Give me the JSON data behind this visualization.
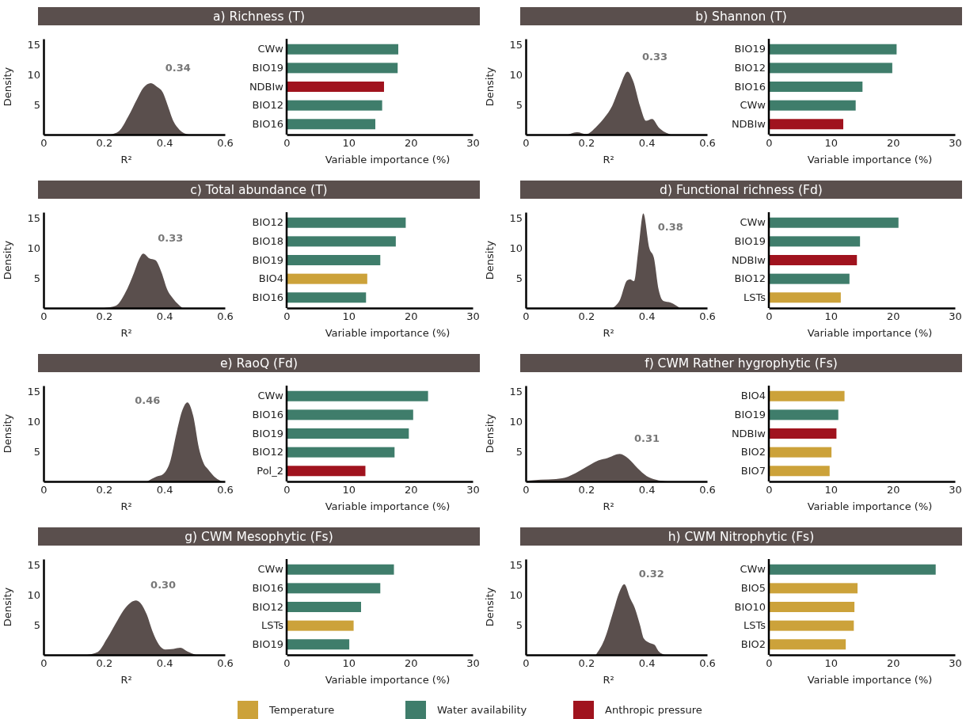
{
  "chart_data": [
    {
      "type": "area",
      "title": "a) Richness (T)",
      "xlabel": "R²",
      "ylabel": "Density",
      "color": "#5a4f4d",
      "xlim": [
        0,
        0.6
      ],
      "xticks": [
        0,
        0.2,
        0.4,
        0.6
      ],
      "ylim": [
        0,
        16
      ],
      "yticks": [
        5,
        10,
        15
      ],
      "x": [
        0.22,
        0.25,
        0.28,
        0.31,
        0.33,
        0.355,
        0.375,
        0.395,
        0.41,
        0.43,
        0.45,
        0.48
      ],
      "values": [
        0,
        0.6,
        3,
        6,
        7.8,
        8.6,
        8,
        7,
        5,
        2.2,
        0.8,
        0
      ],
      "annotations": [
        "0.34"
      ]
    },
    {
      "type": "bar",
      "orientation": "horizontal",
      "stacked": true,
      "xlabel": "Variable importance (%)",
      "xlim": [
        0,
        30
      ],
      "xticks": [
        0,
        10,
        20,
        30
      ],
      "categories": [
        "CWw",
        "BIO19",
        "NDBIw",
        "BIO12",
        "BIO16"
      ],
      "series": [
        {
          "color": "#3f7d6b",
          "values": [
            18.0,
            17.9,
            null,
            15.4,
            14.3
          ]
        },
        {
          "color": "#a0131e",
          "values": [
            null,
            null,
            15.7,
            null,
            null
          ]
        }
      ]
    },
    {
      "type": "area",
      "title": "b) Shannon (T)",
      "xlabel": "R²",
      "ylabel": "Density",
      "color": "#5a4f4d",
      "xlim": [
        0,
        0.6
      ],
      "xticks": [
        0,
        0.2,
        0.4,
        0.6
      ],
      "ylim": [
        0,
        16
      ],
      "yticks": [
        5,
        10,
        15
      ],
      "x": [
        0.14,
        0.17,
        0.2,
        0.235,
        0.26,
        0.286,
        0.31,
        0.337,
        0.355,
        0.378,
        0.398,
        0.418,
        0.44,
        0.48
      ],
      "values": [
        0,
        0.4,
        0.1,
        1.4,
        2.8,
        4.8,
        7.8,
        10.5,
        9,
        4.8,
        2.3,
        2.6,
        1.2,
        0
      ],
      "annotations": [
        "0.33"
      ]
    },
    {
      "type": "bar",
      "orientation": "horizontal",
      "stacked": true,
      "xlabel": "Variable importance (%)",
      "xlim": [
        0,
        30
      ],
      "xticks": [
        0,
        10,
        20,
        30
      ],
      "categories": [
        "BIO19",
        "BIO12",
        "BIO16",
        "CWw",
        "NDBIw"
      ],
      "series": [
        {
          "color": "#3f7d6b",
          "values": [
            20.6,
            19.9,
            15.1,
            14.0,
            null
          ]
        },
        {
          "color": "#a0131e",
          "values": [
            null,
            null,
            null,
            null,
            12.0
          ]
        }
      ]
    },
    {
      "type": "area",
      "title": "c) Total abundance (T)",
      "xlabel": "R²",
      "ylabel": "Density",
      "color": "#5a4f4d",
      "xlim": [
        0,
        0.6
      ],
      "xticks": [
        0,
        0.2,
        0.4,
        0.6
      ],
      "ylim": [
        0,
        16
      ],
      "yticks": [
        5,
        10,
        15
      ],
      "x": [
        0.2,
        0.24,
        0.27,
        0.3,
        0.315,
        0.33,
        0.35,
        0.37,
        0.39,
        0.41,
        0.43,
        0.46
      ],
      "values": [
        0,
        0.4,
        2.5,
        6,
        8,
        9.1,
        8.3,
        8,
        6,
        3,
        1.5,
        0
      ],
      "annotations": [
        "0.33"
      ]
    },
    {
      "type": "bar",
      "orientation": "horizontal",
      "stacked": true,
      "xlabel": "Variable importance (%)",
      "xlim": [
        0,
        30
      ],
      "xticks": [
        0,
        10,
        20,
        30
      ],
      "categories": [
        "BIO12",
        "BIO18",
        "BIO19",
        "BIO4",
        "BIO16"
      ],
      "series": [
        {
          "color": "#cca23a",
          "values": [
            null,
            null,
            null,
            13.0,
            null
          ]
        },
        {
          "color": "#3f7d6b",
          "values": [
            19.2,
            17.6,
            15.1,
            null,
            12.8
          ]
        }
      ]
    },
    {
      "type": "area",
      "title": "d) Functional richness (Fd)",
      "xlabel": "R²",
      "ylabel": "Density",
      "color": "#5a4f4d",
      "xlim": [
        0,
        0.6
      ],
      "xticks": [
        0,
        0.2,
        0.4,
        0.6
      ],
      "ylim": [
        0,
        16
      ],
      "yticks": [
        5,
        10,
        15
      ],
      "x": [
        0.287,
        0.312,
        0.335,
        0.345,
        0.358,
        0.373,
        0.389,
        0.409,
        0.424,
        0.44,
        0.455,
        0.48,
        0.51
      ],
      "values": [
        0,
        1.4,
        4.6,
        4.8,
        4.5,
        9.9,
        15.8,
        10,
        8.4,
        3,
        1.2,
        0.9,
        0
      ],
      "annotations": [
        "0.38"
      ]
    },
    {
      "type": "bar",
      "orientation": "horizontal",
      "stacked": true,
      "xlabel": "Variable importance (%)",
      "xlim": [
        0,
        30
      ],
      "xticks": [
        0,
        10,
        20,
        30
      ],
      "categories": [
        "CWw",
        "BIO19",
        "NDBIw",
        "BIO12",
        "LSTs"
      ],
      "series": [
        {
          "color": "#cca23a",
          "values": [
            null,
            null,
            null,
            null,
            11.6
          ]
        },
        {
          "color": "#3f7d6b",
          "values": [
            20.9,
            14.7,
            null,
            13.0,
            null
          ]
        },
        {
          "color": "#a0131e",
          "values": [
            null,
            null,
            14.2,
            null,
            null
          ]
        }
      ]
    },
    {
      "type": "area",
      "title": "e) RaoQ (Fd)",
      "xlabel": "R²",
      "ylabel": "Density",
      "color": "#5a4f4d",
      "xlim": [
        0,
        0.6
      ],
      "xticks": [
        0,
        0.2,
        0.4,
        0.6
      ],
      "ylim": [
        0,
        16
      ],
      "yticks": [
        5,
        10,
        15
      ],
      "x": [
        0.343,
        0.373,
        0.395,
        0.42,
        0.44,
        0.46,
        0.476,
        0.495,
        0.514,
        0.53,
        0.545,
        0.57,
        0.59
      ],
      "values": [
        0,
        0.8,
        1.2,
        3.5,
        8.1,
        12,
        13.2,
        11,
        5.6,
        3,
        2,
        0.6,
        0
      ],
      "annotations": [
        "0.46"
      ]
    },
    {
      "type": "bar",
      "orientation": "horizontal",
      "stacked": true,
      "xlabel": "Variable importance (%)",
      "xlim": [
        0,
        30
      ],
      "xticks": [
        0,
        10,
        20,
        30
      ],
      "categories": [
        "CWw",
        "BIO16",
        "BIO19",
        "BIO12",
        "Pol_2"
      ],
      "series": [
        {
          "color": "#3f7d6b",
          "values": [
            22.8,
            20.4,
            19.7,
            17.4,
            null
          ]
        },
        {
          "color": "#a0131e",
          "values": [
            null,
            null,
            null,
            null,
            12.7
          ]
        }
      ]
    },
    {
      "type": "area",
      "title": "f) CWM Rather hygrophytic (Fs)",
      "xlabel": "R²",
      "ylabel": "Density",
      "color": "#5a4f4d",
      "xlim": [
        0,
        0.6
      ],
      "xticks": [
        0,
        0.2,
        0.4,
        0.6
      ],
      "ylim": [
        0,
        16
      ],
      "yticks": [
        5,
        10,
        15
      ],
      "x": [
        0,
        0.05,
        0.1,
        0.14,
        0.19,
        0.24,
        0.27,
        0.311,
        0.34,
        0.37,
        0.4,
        0.43,
        0.47
      ],
      "values": [
        0.1,
        0.3,
        0.4,
        0.8,
        2.1,
        3.5,
        3.9,
        4.6,
        3.8,
        2.2,
        0.9,
        0.3,
        0
      ],
      "annotations": [
        "0.31"
      ]
    },
    {
      "type": "bar",
      "orientation": "horizontal",
      "stacked": true,
      "xlabel": "Variable importance (%)",
      "xlim": [
        0,
        30
      ],
      "xticks": [
        0,
        10,
        20,
        30
      ],
      "categories": [
        "BIO4",
        "BIO19",
        "NDBIw",
        "BIO2",
        "BIO7"
      ],
      "series": [
        {
          "color": "#cca23a",
          "values": [
            12.2,
            null,
            null,
            10.1,
            9.8
          ]
        },
        {
          "color": "#3f7d6b",
          "values": [
            null,
            11.2,
            null,
            null,
            null
          ]
        },
        {
          "color": "#a0131e",
          "values": [
            null,
            null,
            10.9,
            null,
            null
          ]
        }
      ]
    },
    {
      "type": "area",
      "title": "g) CWM Mesophytic (Fs)",
      "xlabel": "R²",
      "ylabel": "Density",
      "color": "#5a4f4d",
      "xlim": [
        0,
        0.6
      ],
      "xticks": [
        0,
        0.2,
        0.4,
        0.6
      ],
      "ylim": [
        0,
        16
      ],
      "yticks": [
        5,
        10,
        15
      ],
      "x": [
        0.144,
        0.18,
        0.21,
        0.245,
        0.27,
        0.306,
        0.341,
        0.36,
        0.382,
        0.402,
        0.43,
        0.453,
        0.475,
        0.504
      ],
      "values": [
        0,
        0.5,
        2.7,
        5.8,
        7.8,
        9.1,
        6.8,
        4,
        1.7,
        0.9,
        1,
        1.2,
        0.6,
        0
      ],
      "annotations": [
        "0.30"
      ]
    },
    {
      "type": "bar",
      "orientation": "horizontal",
      "stacked": true,
      "xlabel": "Variable importance (%)",
      "xlim": [
        0,
        30
      ],
      "xticks": [
        0,
        10,
        20,
        30
      ],
      "categories": [
        "CWw",
        "BIO16",
        "BIO12",
        "LSTs",
        "BIO19"
      ],
      "series": [
        {
          "color": "#cca23a",
          "values": [
            null,
            null,
            null,
            10.8,
            null
          ]
        },
        {
          "color": "#3f7d6b",
          "values": [
            17.3,
            15.1,
            12.0,
            null,
            10.1
          ]
        }
      ]
    },
    {
      "type": "area",
      "title": "h) CWM Nitrophytic (Fs)",
      "xlabel": "R²",
      "ylabel": "Density",
      "color": "#5a4f4d",
      "xlim": [
        0,
        0.6
      ],
      "xticks": [
        0,
        0.2,
        0.4,
        0.6
      ],
      "ylim": [
        0,
        16
      ],
      "yticks": [
        5,
        10,
        15
      ],
      "x": [
        0.232,
        0.26,
        0.29,
        0.31,
        0.326,
        0.345,
        0.361,
        0.378,
        0.391,
        0.41,
        0.426,
        0.44,
        0.461
      ],
      "values": [
        0,
        2.5,
        7.3,
        10.5,
        11.8,
        9.5,
        7.8,
        5,
        2.7,
        2,
        1.7,
        0.6,
        0
      ],
      "annotations": [
        "0.32"
      ]
    },
    {
      "type": "bar",
      "orientation": "horizontal",
      "stacked": true,
      "legend": "bottom",
      "xlabel": "Variable importance (%)",
      "xlim": [
        0,
        30
      ],
      "xticks": [
        0,
        10,
        20,
        30
      ],
      "categories": [
        "CWw",
        "BIO5",
        "BIO10",
        "LSTs",
        "BIO2"
      ],
      "series": [
        {
          "name": "Temperature",
          "color": "#cca23a",
          "values": [
            null,
            14.3,
            13.8,
            13.7,
            12.4
          ]
        },
        {
          "name": "Water availability",
          "color": "#3f7d6b",
          "values": [
            26.9,
            null,
            null,
            null,
            null
          ]
        },
        {
          "name": "Anthropic pressure",
          "color": "#a0131e",
          "values": [
            null,
            null,
            null,
            null,
            null
          ]
        }
      ]
    }
  ]
}
